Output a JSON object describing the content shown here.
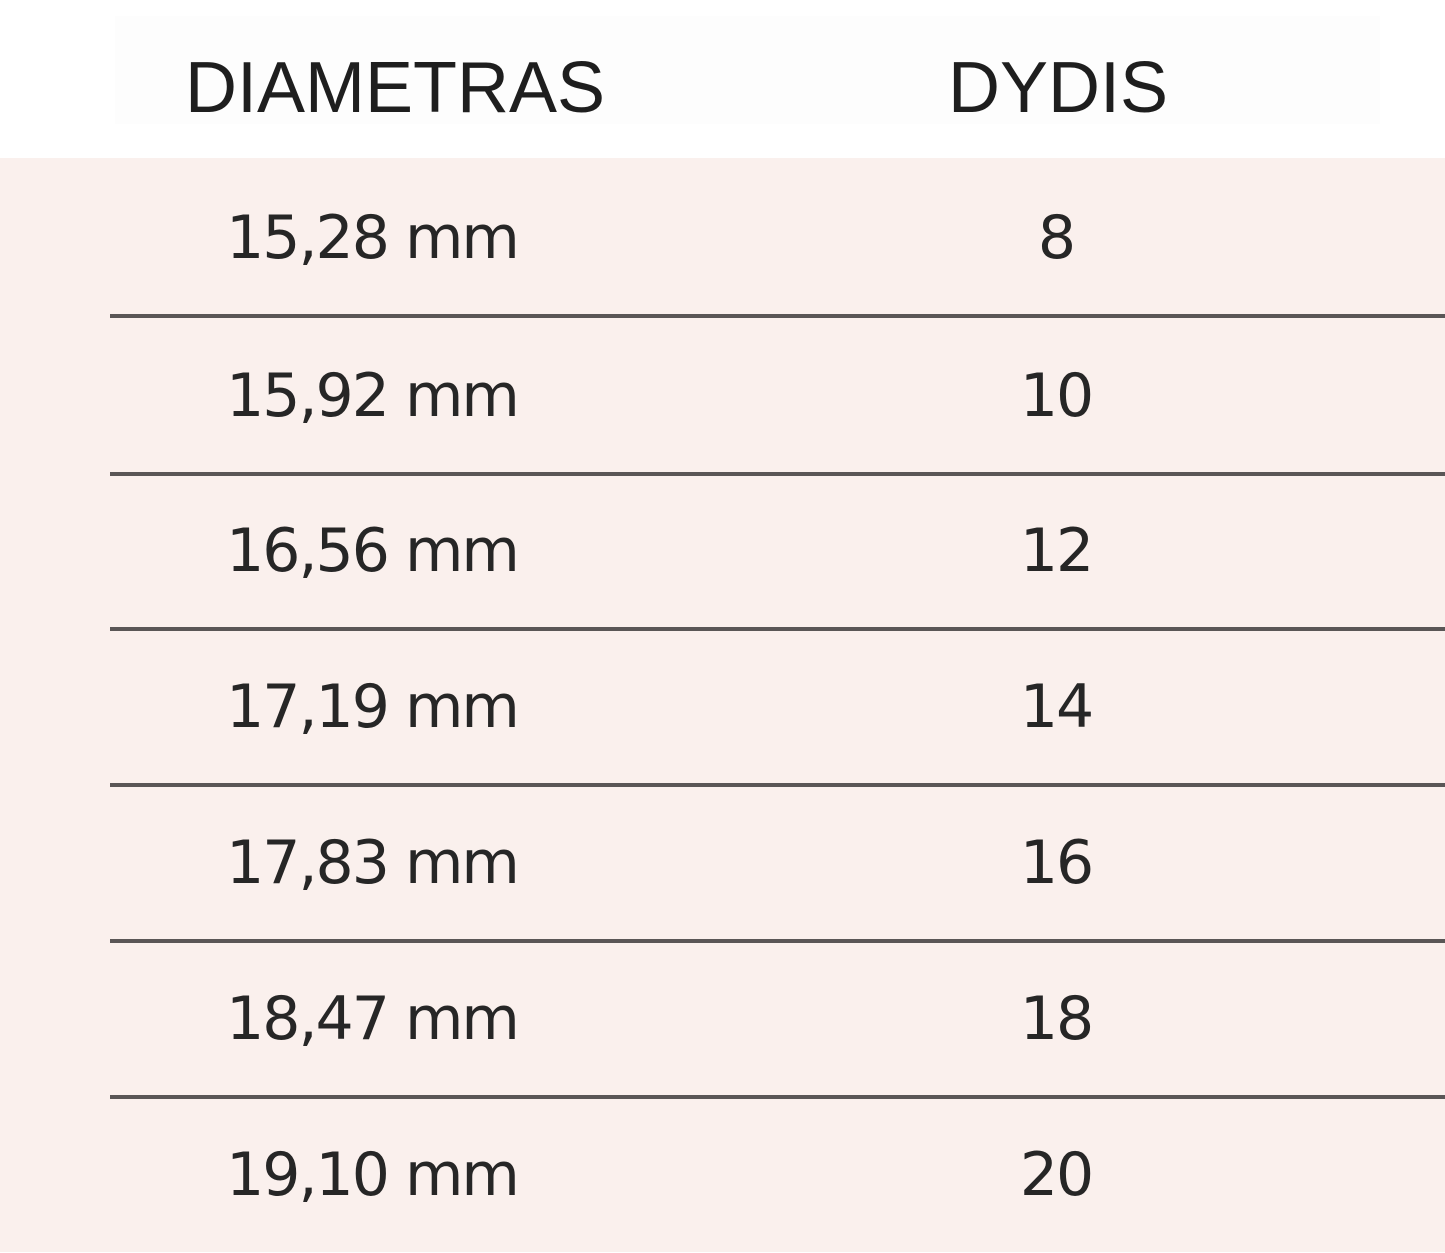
{
  "table": {
    "headers": [
      "DIAMETRAS",
      "DYDIS"
    ],
    "rows": [
      [
        "15,28 mm",
        "8"
      ],
      [
        "15,92 mm",
        "10"
      ],
      [
        "16,56 mm",
        "12"
      ],
      [
        "17,19 mm",
        "14"
      ],
      [
        "17,83 mm",
        "16"
      ],
      [
        "18,47 mm",
        "18"
      ],
      [
        "19,10 mm",
        "20"
      ]
    ]
  },
  "colors": {
    "row_background": "#faf0ed",
    "header_background": "#ffffff",
    "separator": "#5a5656"
  }
}
